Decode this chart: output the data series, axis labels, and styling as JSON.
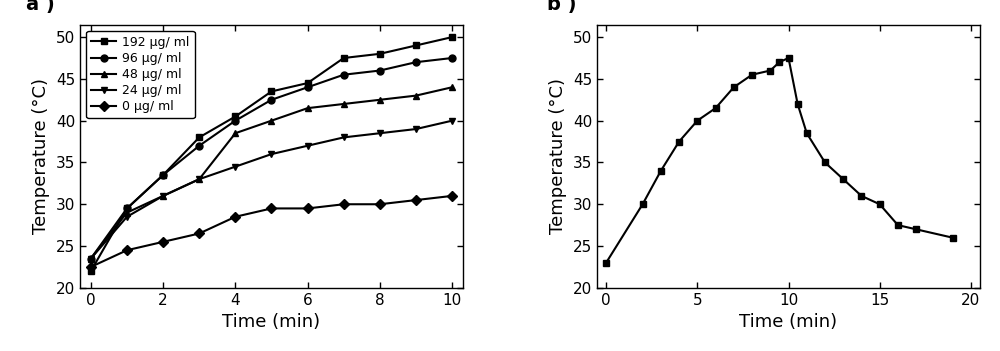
{
  "panel_a": {
    "series": [
      {
        "label": "192 μg/ ml",
        "marker": "s",
        "x": [
          0,
          1,
          2,
          3,
          4,
          5,
          6,
          7,
          8,
          9,
          10
        ],
        "y": [
          22.0,
          29.5,
          33.5,
          38.0,
          40.5,
          43.5,
          44.5,
          47.5,
          48.0,
          49.0,
          50.0
        ]
      },
      {
        "label": "96 μg/ ml",
        "marker": "o",
        "x": [
          0,
          1,
          2,
          3,
          4,
          5,
          6,
          7,
          8,
          9,
          10
        ],
        "y": [
          23.5,
          29.5,
          33.5,
          37.0,
          40.0,
          42.5,
          44.0,
          45.5,
          46.0,
          47.0,
          47.5
        ]
      },
      {
        "label": "48 μg/ ml",
        "marker": "^",
        "x": [
          0,
          1,
          2,
          3,
          4,
          5,
          6,
          7,
          8,
          9,
          10
        ],
        "y": [
          23.5,
          29.0,
          31.0,
          33.0,
          38.5,
          40.0,
          41.5,
          42.0,
          42.5,
          43.0,
          44.0
        ]
      },
      {
        "label": "24 μg/ ml",
        "marker": "v",
        "x": [
          0,
          1,
          2,
          3,
          4,
          5,
          6,
          7,
          8,
          9,
          10
        ],
        "y": [
          23.5,
          28.5,
          31.0,
          33.0,
          34.5,
          36.0,
          37.0,
          38.0,
          38.5,
          39.0,
          40.0
        ]
      },
      {
        "label": "0 μg/ ml",
        "marker": "D",
        "x": [
          0,
          1,
          2,
          3,
          4,
          5,
          6,
          7,
          8,
          9,
          10
        ],
        "y": [
          22.5,
          24.5,
          25.5,
          26.5,
          28.5,
          29.5,
          29.5,
          30.0,
          30.0,
          30.5,
          31.0
        ]
      }
    ],
    "xlabel": "Time (min)",
    "ylabel": "Temperature (°C)",
    "xlim": [
      -0.3,
      10.3
    ],
    "ylim": [
      20,
      51.5
    ],
    "xticks": [
      0,
      2,
      4,
      6,
      8,
      10
    ],
    "yticks": [
      20,
      25,
      30,
      35,
      40,
      45,
      50
    ],
    "label": "a )"
  },
  "panel_b": {
    "x": [
      0,
      2,
      3,
      4,
      5,
      6,
      7,
      8,
      9,
      9.5,
      10,
      10.5,
      11,
      12,
      13,
      14,
      15,
      16,
      17,
      19
    ],
    "y": [
      23.0,
      30.0,
      34.0,
      37.5,
      40.0,
      41.5,
      44.0,
      45.5,
      46.0,
      47.0,
      47.5,
      42.0,
      38.5,
      35.0,
      33.0,
      31.0,
      30.0,
      27.5,
      27.0,
      26.0
    ],
    "marker": "s",
    "xlabel": "Time (min)",
    "ylabel": "Temperature (°C)",
    "xlim": [
      -0.5,
      20.5
    ],
    "ylim": [
      20,
      51.5
    ],
    "xticks": [
      0,
      5,
      10,
      15,
      20
    ],
    "yticks": [
      20,
      25,
      30,
      35,
      40,
      45,
      50
    ],
    "label": "b )"
  },
  "line_color": "#000000",
  "marker_size": 5,
  "linewidth": 1.5,
  "tick_fontsize": 11,
  "label_fontsize": 13,
  "legend_fontsize": 9
}
